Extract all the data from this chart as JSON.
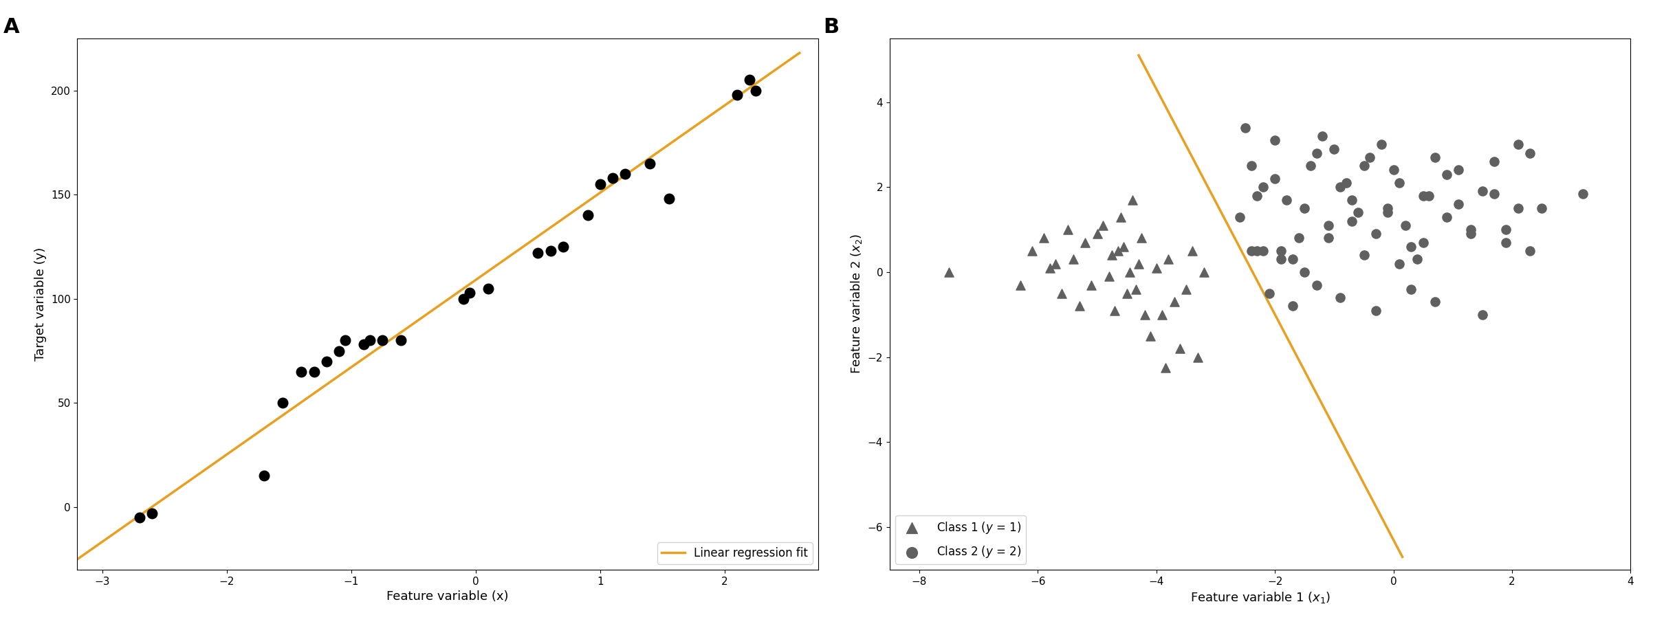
{
  "fig_width": 24.04,
  "fig_height": 9.08,
  "dpi": 100,
  "orange_color": "#E8A020",
  "dark_gray": "#606060",
  "panel_A": {
    "label": "A",
    "scatter_x": [
      -2.7,
      -2.6,
      -1.7,
      -1.55,
      -1.4,
      -1.3,
      -1.2,
      -1.1,
      -1.05,
      -0.9,
      -0.85,
      -0.75,
      -0.6,
      -0.1,
      -0.05,
      0.1,
      0.5,
      0.6,
      0.7,
      0.9,
      1.0,
      1.1,
      1.2,
      1.4,
      1.55,
      2.1,
      2.2,
      2.25
    ],
    "scatter_y": [
      -5.0,
      -3.0,
      15.0,
      50.0,
      65.0,
      65.0,
      70.0,
      75.0,
      80.0,
      78.0,
      80.0,
      80.0,
      80.0,
      100.0,
      103.0,
      105.0,
      122.0,
      123.0,
      125.0,
      140.0,
      155.0,
      158.0,
      160.0,
      165.0,
      148.0,
      198.0,
      205.0,
      200.0
    ],
    "line_x": [
      -3.2,
      2.6
    ],
    "line_y": [
      -25.0,
      218.0
    ],
    "xlim": [
      -3.2,
      2.75
    ],
    "ylim": [
      -30,
      225
    ],
    "xlabel": "Feature variable (x)",
    "ylabel": "Target variable (y)",
    "legend_label": "Linear regression fit",
    "xticks": [
      -3,
      -2,
      -1,
      0,
      1,
      2
    ],
    "yticks": [
      0,
      50,
      100,
      150,
      200
    ]
  },
  "panel_B": {
    "label": "B",
    "class1_x": [
      -7.5,
      -6.3,
      -6.1,
      -5.9,
      -5.8,
      -5.7,
      -5.6,
      -5.5,
      -5.4,
      -5.3,
      -5.2,
      -5.1,
      -5.0,
      -4.9,
      -4.8,
      -4.75,
      -4.7,
      -4.65,
      -4.6,
      -4.55,
      -4.5,
      -4.45,
      -4.4,
      -4.35,
      -4.3,
      -4.25,
      -4.2,
      -4.1,
      -4.0,
      -3.9,
      -3.85,
      -3.8,
      -3.7,
      -3.6,
      -3.5,
      -3.4,
      -3.3,
      -3.2
    ],
    "class1_y": [
      0.0,
      -0.3,
      0.5,
      0.8,
      0.1,
      0.2,
      -0.5,
      1.0,
      0.3,
      -0.8,
      0.7,
      -0.3,
      0.9,
      1.1,
      -0.1,
      0.4,
      -0.9,
      0.5,
      1.3,
      0.6,
      -0.5,
      0.0,
      1.7,
      -0.4,
      0.2,
      0.8,
      -1.0,
      -1.5,
      0.1,
      -1.0,
      -2.25,
      0.3,
      -0.7,
      -1.8,
      -0.4,
      0.5,
      -2.0,
      0.0
    ],
    "class2_x": [
      -2.5,
      -2.4,
      -2.3,
      -2.2,
      -2.0,
      -1.9,
      -1.7,
      -1.5,
      -1.3,
      -1.1,
      -0.9,
      -0.7,
      -0.5,
      -0.3,
      -0.1,
      0.1,
      0.3,
      0.5,
      0.7,
      0.9,
      1.1,
      1.3,
      1.5,
      1.7,
      1.9,
      2.1,
      2.3,
      2.5,
      3.2,
      -2.3,
      -2.1,
      -1.9,
      -1.7,
      -1.5,
      -1.3,
      -1.1,
      -0.9,
      -0.7,
      -0.5,
      -0.3,
      -0.1,
      0.1,
      0.3,
      0.5,
      0.7,
      0.9,
      1.1,
      1.3,
      1.5,
      1.7,
      1.9,
      2.1,
      2.3,
      -2.6,
      -2.4,
      -2.2,
      -2.0,
      -1.8,
      -1.6,
      -1.4,
      -1.2,
      -1.0,
      -0.8,
      -0.6,
      -0.4,
      -0.2,
      0.0,
      0.2,
      0.4,
      0.6
    ],
    "class2_y": [
      3.4,
      2.5,
      1.8,
      0.5,
      2.2,
      0.5,
      0.3,
      1.5,
      2.8,
      1.1,
      2.0,
      1.7,
      2.5,
      0.9,
      1.4,
      2.1,
      0.6,
      1.8,
      2.7,
      1.3,
      2.4,
      1.0,
      1.9,
      1.85,
      0.7,
      1.5,
      0.5,
      1.5,
      1.85,
      0.5,
      -0.5,
      0.3,
      -0.8,
      0.0,
      -0.3,
      0.8,
      -0.6,
      1.2,
      0.4,
      -0.9,
      1.5,
      0.2,
      -0.4,
      0.7,
      -0.7,
      2.3,
      1.6,
      0.9,
      -1.0,
      2.6,
      1.0,
      3.0,
      2.8,
      1.3,
      0.5,
      2.0,
      3.1,
      1.7,
      0.8,
      2.5,
      3.2,
      2.9,
      2.1,
      1.4,
      2.7,
      3.0,
      2.4,
      1.1,
      0.3,
      1.8
    ],
    "line_x": [
      -4.3,
      0.15
    ],
    "line_y": [
      5.1,
      -6.7
    ],
    "xlim": [
      -8.5,
      4.0
    ],
    "ylim": [
      -7.0,
      5.5
    ],
    "xlabel": "Feature variable 1 ($x_1$)",
    "ylabel": "Feature variable 2 ($x_2$)",
    "legend_class1": "Class 1 ($y$ = 1)",
    "legend_class2": "Class 2 ($y$ = 2)",
    "xticks": [
      -8,
      -6,
      -4,
      -2,
      0,
      2,
      4
    ],
    "yticks": [
      -6,
      -4,
      -2,
      0,
      2,
      4
    ]
  },
  "background_color": "#ffffff"
}
